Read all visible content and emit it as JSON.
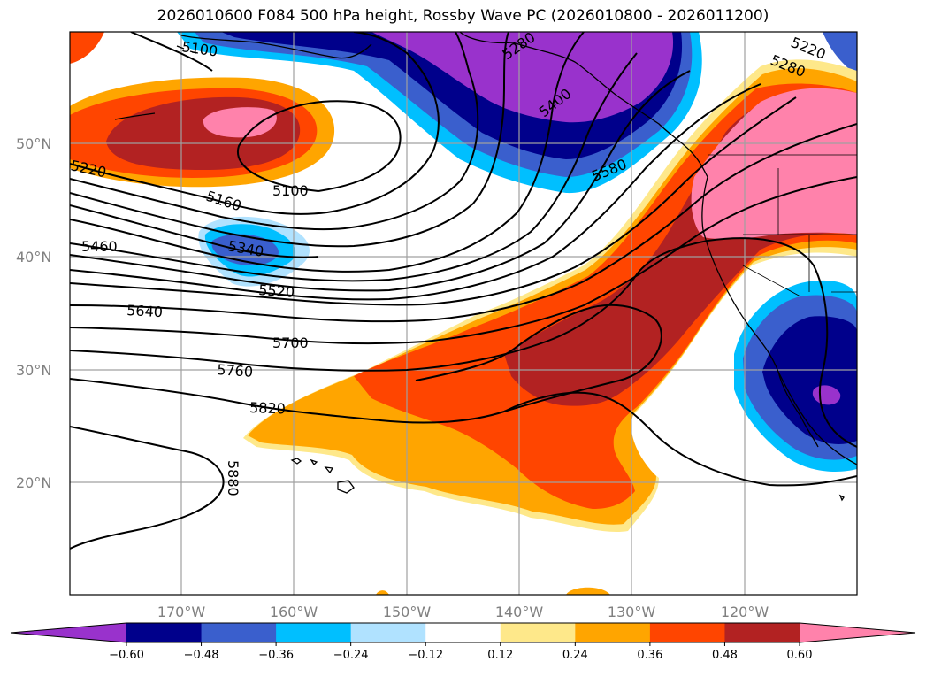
{
  "title": "2026010600 F084 500 hPa height, Rossby Wave PC (2026010800 - 2026011200)",
  "map": {
    "lat_labels": [
      "50°N",
      "40°N",
      "30°N",
      "20°N"
    ],
    "lon_labels": [
      "170°W",
      "160°W",
      "150°W",
      "140°W",
      "130°W",
      "120°W"
    ],
    "contour_labels": [
      "5100",
      "5280",
      "5220",
      "5280",
      "5400",
      "5580",
      "5220",
      "5160",
      "5100",
      "5460",
      "5340",
      "5520",
      "5640",
      "5700",
      "5760",
      "5820",
      "5880"
    ]
  },
  "colorbar": {
    "colors": [
      "#9932cc",
      "#00008b",
      "#3a5fcd",
      "#00bfff",
      "#b0e2ff",
      "#ffffff",
      "#fee88a",
      "#ffa500",
      "#ff4500",
      "#b22222",
      "#ff82ab"
    ],
    "tick_labels": [
      "−0.60",
      "−0.48",
      "−0.36",
      "−0.24",
      "−0.12",
      "0.12",
      "0.24",
      "0.36",
      "0.48",
      "0.60"
    ]
  }
}
